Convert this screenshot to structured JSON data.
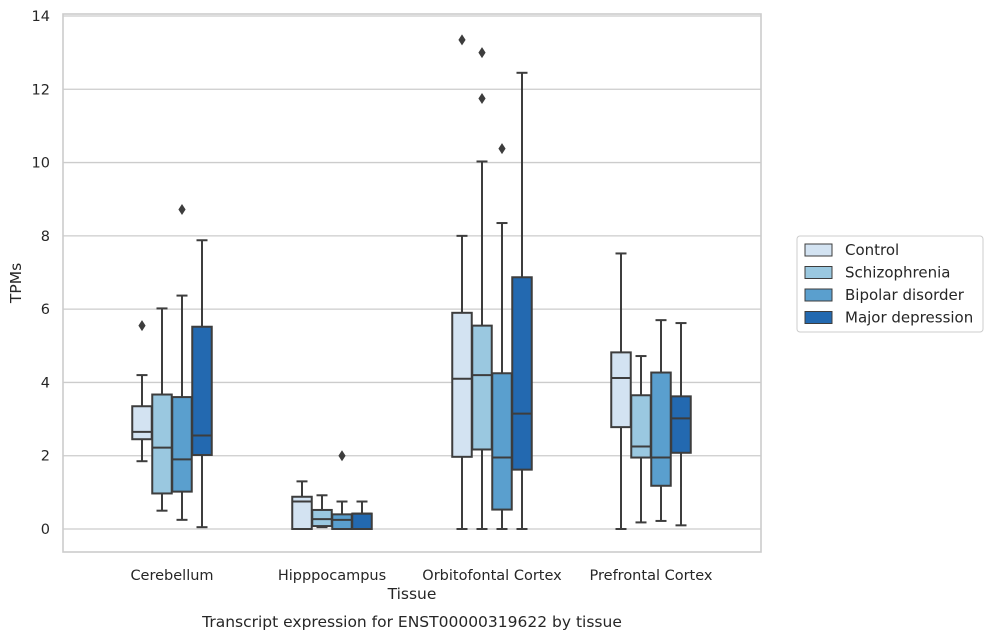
{
  "chart_data": {
    "type": "box",
    "title": "",
    "caption": "Transcript expression for ENST00000319622 by tissue",
    "xlabel": "Tissue",
    "ylabel": "TPMs",
    "ylim": [
      -0.6,
      14.1
    ],
    "yticks": [
      0,
      2,
      4,
      6,
      8,
      10,
      12,
      14
    ],
    "grid": "horizontal",
    "legend_position": "right",
    "categories": [
      "Cerebellum",
      "Hipppocampus",
      "Orbitofontal Cortex",
      "Prefrontal Cortex"
    ],
    "series": [
      {
        "name": "Control",
        "color": "#d3e3f2",
        "boxes": [
          {
            "whisker_low": 1.85,
            "q1": 2.45,
            "median": 2.65,
            "q3": 3.35,
            "whisker_high": 4.2,
            "outliers": [
              5.55
            ]
          },
          {
            "whisker_low": 0.0,
            "q1": 0.0,
            "median": 0.75,
            "q3": 0.88,
            "whisker_high": 1.3,
            "outliers": []
          },
          {
            "whisker_low": 0.0,
            "q1": 1.97,
            "median": 4.1,
            "q3": 5.9,
            "whisker_high": 8.0,
            "outliers": [
              13.35
            ]
          },
          {
            "whisker_low": 0.0,
            "q1": 2.78,
            "median": 4.12,
            "q3": 4.82,
            "whisker_high": 7.52,
            "outliers": []
          }
        ]
      },
      {
        "name": "Schizophrenia",
        "color": "#9ac8e0",
        "boxes": [
          {
            "whisker_low": 0.5,
            "q1": 0.97,
            "median": 2.22,
            "q3": 3.67,
            "whisker_high": 6.02,
            "outliers": []
          },
          {
            "whisker_low": 0.05,
            "q1": 0.08,
            "median": 0.27,
            "q3": 0.52,
            "whisker_high": 0.92,
            "outliers": []
          },
          {
            "whisker_low": 0.0,
            "q1": 2.17,
            "median": 4.2,
            "q3": 5.55,
            "whisker_high": 10.03,
            "outliers": [
              13.0,
              11.75
            ]
          },
          {
            "whisker_low": 0.18,
            "q1": 1.95,
            "median": 2.25,
            "q3": 3.65,
            "whisker_high": 4.72,
            "outliers": []
          }
        ]
      },
      {
        "name": "Bipolar disorder",
        "color": "#5a9fce",
        "boxes": [
          {
            "whisker_low": 0.25,
            "q1": 1.02,
            "median": 1.9,
            "q3": 3.6,
            "whisker_high": 6.37,
            "outliers": [
              8.72
            ]
          },
          {
            "whisker_low": 0.0,
            "q1": 0.0,
            "median": 0.25,
            "q3": 0.4,
            "whisker_high": 0.75,
            "outliers": [
              2.0
            ]
          },
          {
            "whisker_low": 0.0,
            "q1": 0.53,
            "median": 1.95,
            "q3": 4.25,
            "whisker_high": 8.35,
            "outliers": [
              10.38
            ]
          },
          {
            "whisker_low": 0.22,
            "q1": 1.18,
            "median": 1.95,
            "q3": 4.27,
            "whisker_high": 5.7,
            "outliers": []
          }
        ]
      },
      {
        "name": "Major depression",
        "color": "#2369b0",
        "boxes": [
          {
            "whisker_low": 0.05,
            "q1": 2.02,
            "median": 2.55,
            "q3": 5.52,
            "whisker_high": 7.88,
            "outliers": []
          },
          {
            "whisker_low": 0.0,
            "q1": 0.0,
            "median": 0.42,
            "q3": 0.42,
            "whisker_high": 0.75,
            "outliers": []
          },
          {
            "whisker_low": 0.0,
            "q1": 1.62,
            "median": 3.15,
            "q3": 6.87,
            "whisker_high": 12.45,
            "outliers": []
          },
          {
            "whisker_low": 0.1,
            "q1": 2.08,
            "median": 3.02,
            "q3": 3.62,
            "whisker_high": 5.62,
            "outliers": []
          }
        ]
      }
    ]
  }
}
